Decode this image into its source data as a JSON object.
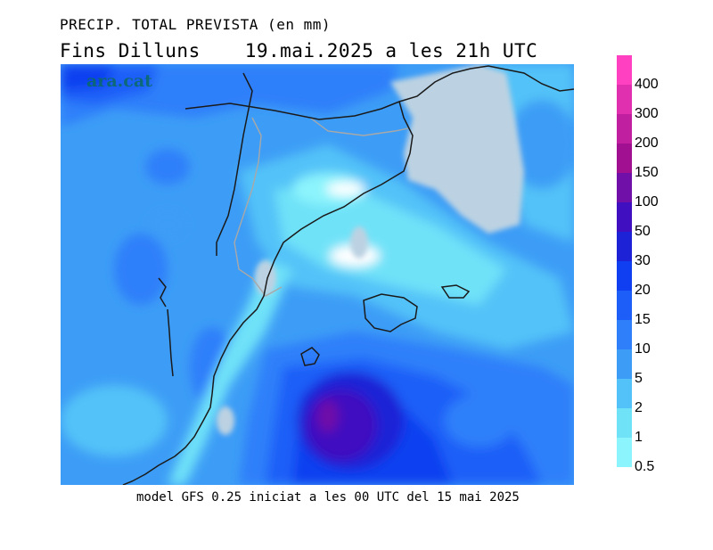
{
  "title": {
    "line1": "PRECIP. TOTAL PREVISTA (en mm)",
    "line2_left": "Fins Dilluns",
    "line2_right": "19.mai.2025 a les 21h UTC"
  },
  "watermark": "ara.cat",
  "footer": "model GFS 0.25 iniciat a les 00 UTC del 15 mai 2025",
  "legend": {
    "levels": [
      {
        "label": "400",
        "color": "#ff40c0"
      },
      {
        "label": "300",
        "color": "#e030b0"
      },
      {
        "label": "200",
        "color": "#c020a0"
      },
      {
        "label": "150",
        "color": "#a01090"
      },
      {
        "label": "100",
        "color": "#7010a8"
      },
      {
        "label": "50",
        "color": "#4010c0"
      },
      {
        "label": "30",
        "color": "#1e22d6"
      },
      {
        "label": "20",
        "color": "#0f3ff0"
      },
      {
        "label": "15",
        "color": "#1e5ef8"
      },
      {
        "label": "10",
        "color": "#2f7ffa"
      },
      {
        "label": "5",
        "color": "#3d9df6"
      },
      {
        "label": "2",
        "color": "#52c2f8"
      },
      {
        "label": "1",
        "color": "#70e2f8"
      },
      {
        "label": "0.5",
        "color": "#8cf4fc"
      }
    ]
  },
  "map": {
    "land_no_data_color": "#bcd2e2",
    "coastline_color": "#1a1a1a",
    "border_color": "#a8a8a8"
  }
}
